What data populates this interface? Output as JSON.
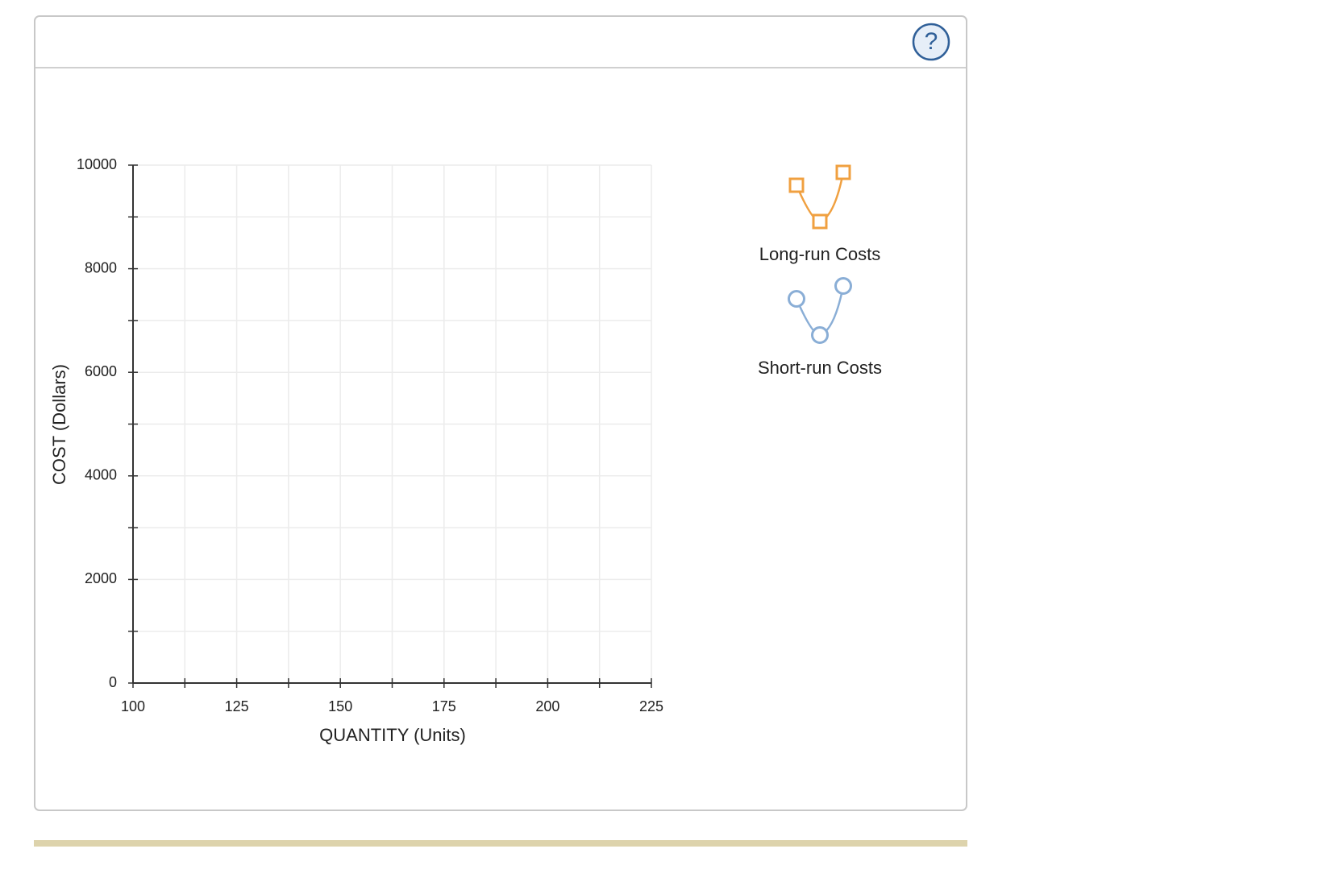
{
  "chart_data": {
    "type": "line",
    "x_label": "QUANTITY (Units)",
    "y_label": "COST (Dollars)",
    "xlim": [
      100,
      225
    ],
    "xticks": [
      100,
      125,
      150,
      175,
      200,
      225
    ],
    "ylim": [
      0,
      10000
    ],
    "yticks": [
      0,
      2000,
      4000,
      6000,
      8000,
      10000
    ],
    "grid": true
  },
  "palette": [
    {
      "label": "Long-run Costs",
      "color": "#f0a040",
      "marker": "square"
    },
    {
      "label": "Short-run Costs",
      "color": "#8aaed6",
      "marker": "circle"
    }
  ],
  "help": "?"
}
